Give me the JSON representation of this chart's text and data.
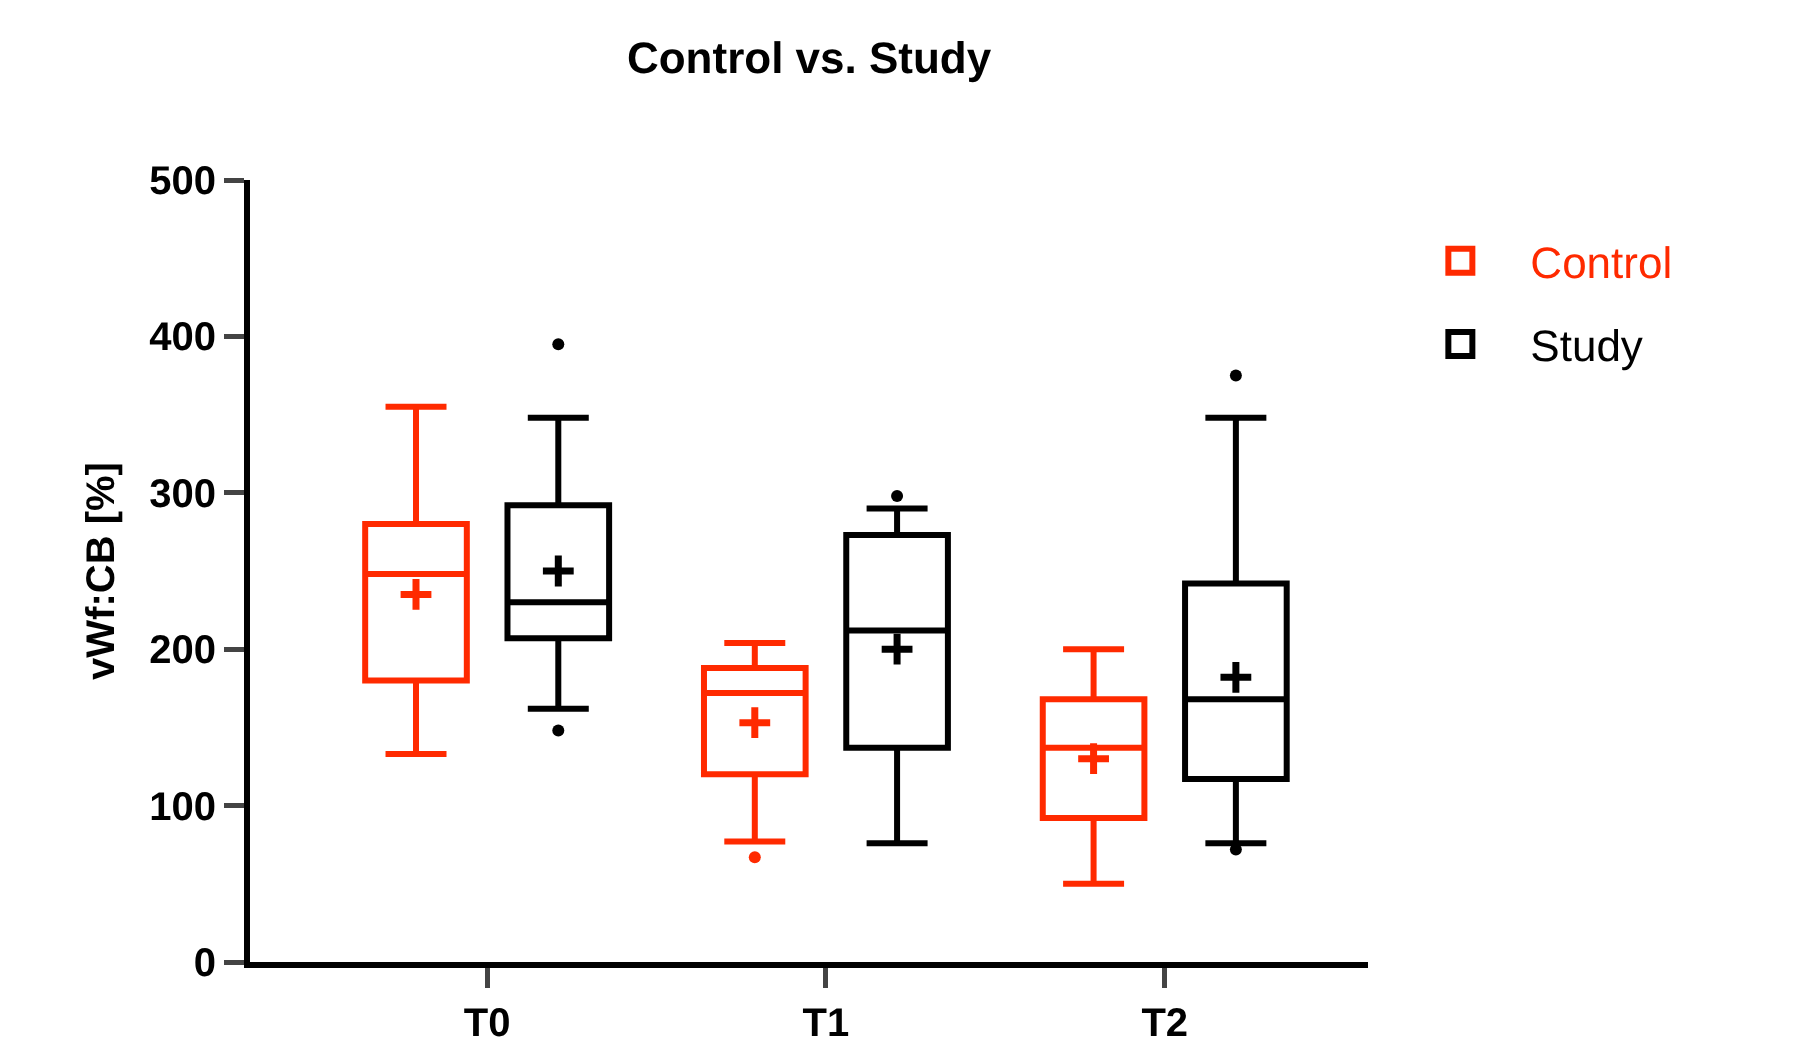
{
  "chart_data": {
    "type": "box",
    "title": "Control vs. Study",
    "ylabel": "vWf:CB [%]",
    "categories": [
      "T0",
      "T1",
      "T2"
    ],
    "ylim": [
      0,
      500
    ],
    "yticks": [
      0,
      100,
      200,
      300,
      400,
      500
    ],
    "grid": false,
    "legend": "top right",
    "series": [
      {
        "name": "Control",
        "color": "#ff2a00",
        "boxes": [
          {
            "low": 133,
            "q1": 180,
            "median": 248,
            "q3": 280,
            "high": 355,
            "mean": 235
          },
          {
            "low": 77,
            "q1": 120,
            "median": 172,
            "q3": 188,
            "high": 204,
            "mean": 153,
            "outliers": [
              67
            ]
          },
          {
            "low": 50,
            "q1": 92,
            "median": 137,
            "q3": 168,
            "high": 200,
            "mean": 130
          }
        ]
      },
      {
        "name": "Study",
        "color": "#000000",
        "boxes": [
          {
            "low": 162,
            "q1": 207,
            "median": 230,
            "q3": 292,
            "high": 348,
            "mean": 250,
            "outliers": [
              395,
              148
            ]
          },
          {
            "low": 76,
            "q1": 137,
            "median": 212,
            "q3": 273,
            "high": 290,
            "mean": 200,
            "outliers": [
              298
            ]
          },
          {
            "low": 76,
            "q1": 117,
            "median": 168,
            "q3": 242,
            "high": 348,
            "mean": 182,
            "outliers": [
              375,
              72
            ]
          }
        ]
      }
    ]
  }
}
